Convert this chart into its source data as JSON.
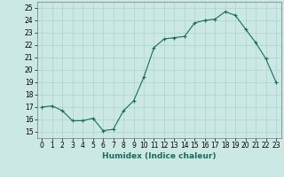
{
  "x": [
    0,
    1,
    2,
    3,
    4,
    5,
    6,
    7,
    8,
    9,
    10,
    11,
    12,
    13,
    14,
    15,
    16,
    17,
    18,
    19,
    20,
    21,
    22,
    23
  ],
  "y": [
    17.0,
    17.1,
    16.7,
    15.9,
    15.9,
    16.1,
    15.1,
    15.2,
    16.7,
    17.5,
    19.4,
    21.8,
    22.5,
    22.6,
    22.7,
    23.8,
    24.0,
    24.1,
    24.7,
    24.4,
    23.3,
    22.2,
    20.9,
    19.0
  ],
  "line_color": "#1a6b5a",
  "marker_color": "#1a6b5a",
  "bg_color": "#cce8e4",
  "grid_color": "#aad4cc",
  "xlabel": "Humidex (Indice chaleur)",
  "xlim": [
    -0.5,
    23.5
  ],
  "ylim": [
    14.5,
    25.5
  ],
  "yticks": [
    15,
    16,
    17,
    18,
    19,
    20,
    21,
    22,
    23,
    24,
    25
  ],
  "xticks": [
    0,
    1,
    2,
    3,
    4,
    5,
    6,
    7,
    8,
    9,
    10,
    11,
    12,
    13,
    14,
    15,
    16,
    17,
    18,
    19,
    20,
    21,
    22,
    23
  ],
  "label_fontsize": 6.5,
  "tick_fontsize": 5.5
}
